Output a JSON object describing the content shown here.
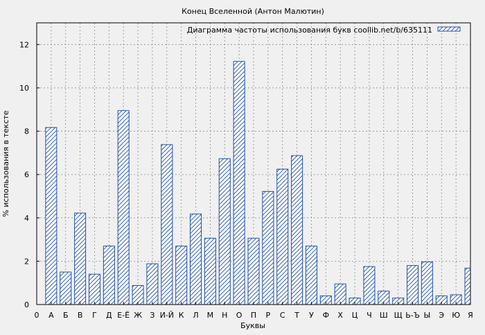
{
  "chart_data": {
    "type": "bar",
    "title": "Конец Вселенной (Антон Малютин)",
    "xlabel": "Буквы",
    "ylabel": "% использования в тексте",
    "legend": {
      "label": "Диаграмма частоты использования букв coollib.net/b/635111",
      "placement": "top-right"
    },
    "grid": true,
    "ylim": [
      0,
      13
    ],
    "yticks": [
      0,
      2,
      4,
      6,
      8,
      10,
      12
    ],
    "x_origin_label": "0",
    "categories": [
      "А",
      "Б",
      "В",
      "Г",
      "Д",
      "Е-Ё",
      "Ж",
      "З",
      "И-Й",
      "К",
      "Л",
      "М",
      "Н",
      "О",
      "П",
      "Р",
      "С",
      "Т",
      "У",
      "Ф",
      "Х",
      "Ц",
      "Ч",
      "Ш",
      "Щ",
      "Ь-Ъ",
      "Ы",
      "Э",
      "Ю",
      "Я"
    ],
    "values": [
      8.17,
      1.5,
      4.22,
      1.4,
      2.7,
      8.95,
      0.88,
      1.88,
      7.38,
      2.7,
      4.18,
      3.06,
      6.73,
      11.22,
      3.06,
      5.22,
      6.25,
      6.87,
      2.7,
      0.4,
      0.95,
      0.3,
      1.75,
      0.62,
      0.3,
      1.8,
      1.97,
      0.4,
      0.45,
      1.68
    ],
    "colors": {
      "bar_stroke": "#1f4fa8",
      "bar_hatch": "#1f4fa8",
      "bar_fill": "#ffffff",
      "plot_bg": "#f0f0f0",
      "grid": "#888888"
    }
  }
}
